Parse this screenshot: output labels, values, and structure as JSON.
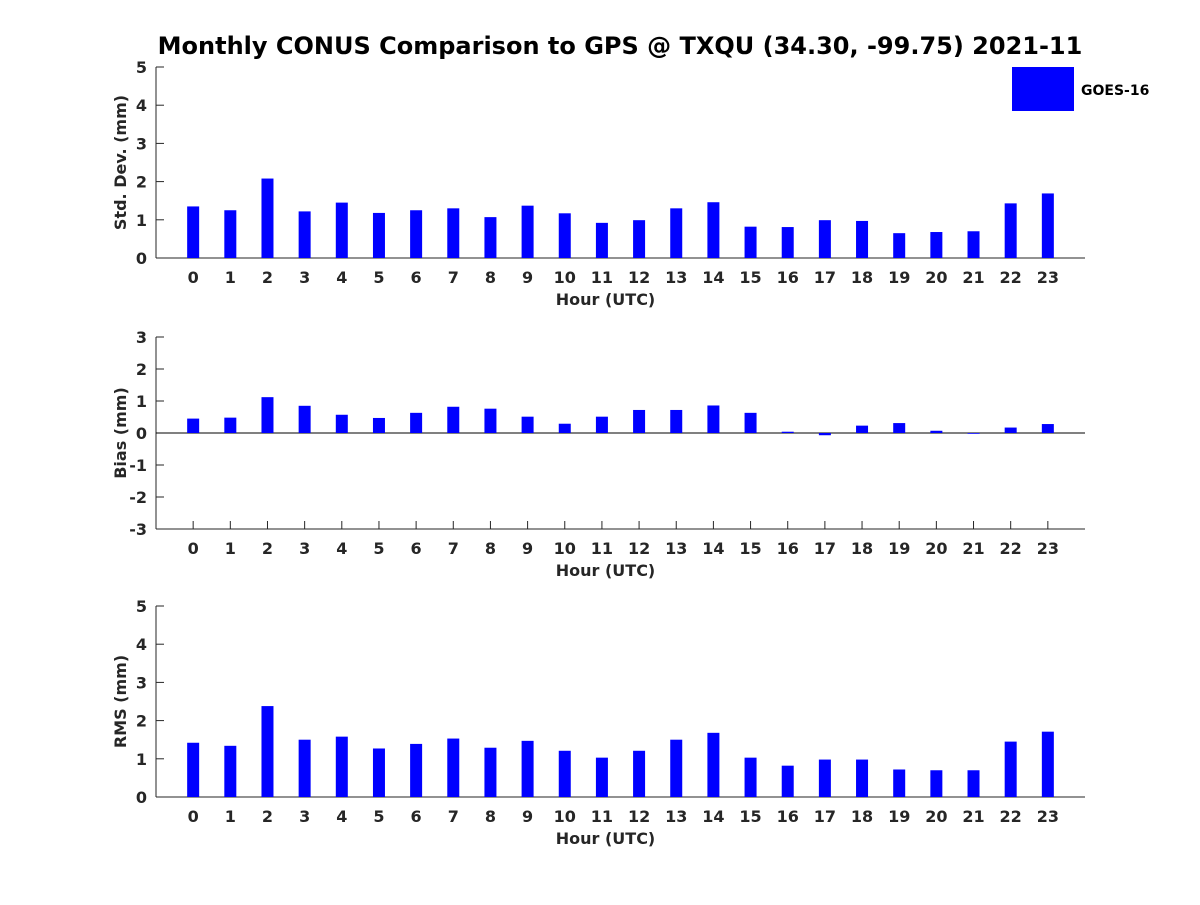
{
  "title": "Monthly CONUS Comparison to GPS @ TXQU (34.30, -99.75) 2021-11",
  "legend": {
    "label": "GOES-16",
    "color": "#0000ff",
    "placement": "top-right"
  },
  "chart_data": [
    {
      "type": "bar",
      "xlabel": "Hour (UTC)",
      "ylabel": "Std. Dev. (mm)",
      "ylim": [
        0,
        5
      ],
      "yticks": [
        0,
        1,
        2,
        3,
        4,
        5
      ],
      "categories": [
        "0",
        "1",
        "2",
        "3",
        "4",
        "5",
        "6",
        "7",
        "8",
        "9",
        "10",
        "11",
        "12",
        "13",
        "14",
        "15",
        "16",
        "17",
        "18",
        "19",
        "20",
        "21",
        "22",
        "23"
      ],
      "series": [
        {
          "name": "GOES-16",
          "color": "#0000ff",
          "values": [
            1.35,
            1.25,
            2.08,
            1.22,
            1.45,
            1.18,
            1.25,
            1.3,
            1.07,
            1.37,
            1.17,
            0.92,
            0.99,
            1.3,
            1.46,
            0.82,
            0.81,
            0.99,
            0.97,
            0.65,
            0.68,
            0.7,
            1.43,
            1.69
          ]
        }
      ]
    },
    {
      "type": "bar",
      "xlabel": "Hour (UTC)",
      "ylabel": "Bias (mm)",
      "ylim": [
        -3,
        3
      ],
      "yticks": [
        -3,
        -2,
        -1,
        0,
        1,
        2,
        3
      ],
      "categories": [
        "0",
        "1",
        "2",
        "3",
        "4",
        "5",
        "6",
        "7",
        "8",
        "9",
        "10",
        "11",
        "12",
        "13",
        "14",
        "15",
        "16",
        "17",
        "18",
        "19",
        "20",
        "21",
        "22",
        "23"
      ],
      "series": [
        {
          "name": "GOES-16",
          "color": "#0000ff",
          "values": [
            0.45,
            0.48,
            1.12,
            0.85,
            0.57,
            0.47,
            0.63,
            0.82,
            0.76,
            0.51,
            0.29,
            0.51,
            0.72,
            0.72,
            0.86,
            0.63,
            0.04,
            -0.07,
            0.23,
            0.31,
            0.07,
            -0.02,
            0.17,
            0.28
          ]
        }
      ]
    },
    {
      "type": "bar",
      "xlabel": "Hour (UTC)",
      "ylabel": "RMS (mm)",
      "ylim": [
        0,
        5
      ],
      "yticks": [
        0,
        1,
        2,
        3,
        4,
        5
      ],
      "categories": [
        "0",
        "1",
        "2",
        "3",
        "4",
        "5",
        "6",
        "7",
        "8",
        "9",
        "10",
        "11",
        "12",
        "13",
        "14",
        "15",
        "16",
        "17",
        "18",
        "19",
        "20",
        "21",
        "22",
        "23"
      ],
      "series": [
        {
          "name": "GOES-16",
          "color": "#0000ff",
          "values": [
            1.42,
            1.34,
            2.38,
            1.5,
            1.58,
            1.27,
            1.39,
            1.53,
            1.29,
            1.47,
            1.21,
            1.03,
            1.21,
            1.5,
            1.68,
            1.03,
            0.82,
            0.98,
            0.98,
            0.72,
            0.7,
            0.7,
            1.45,
            1.71
          ]
        }
      ]
    }
  ]
}
